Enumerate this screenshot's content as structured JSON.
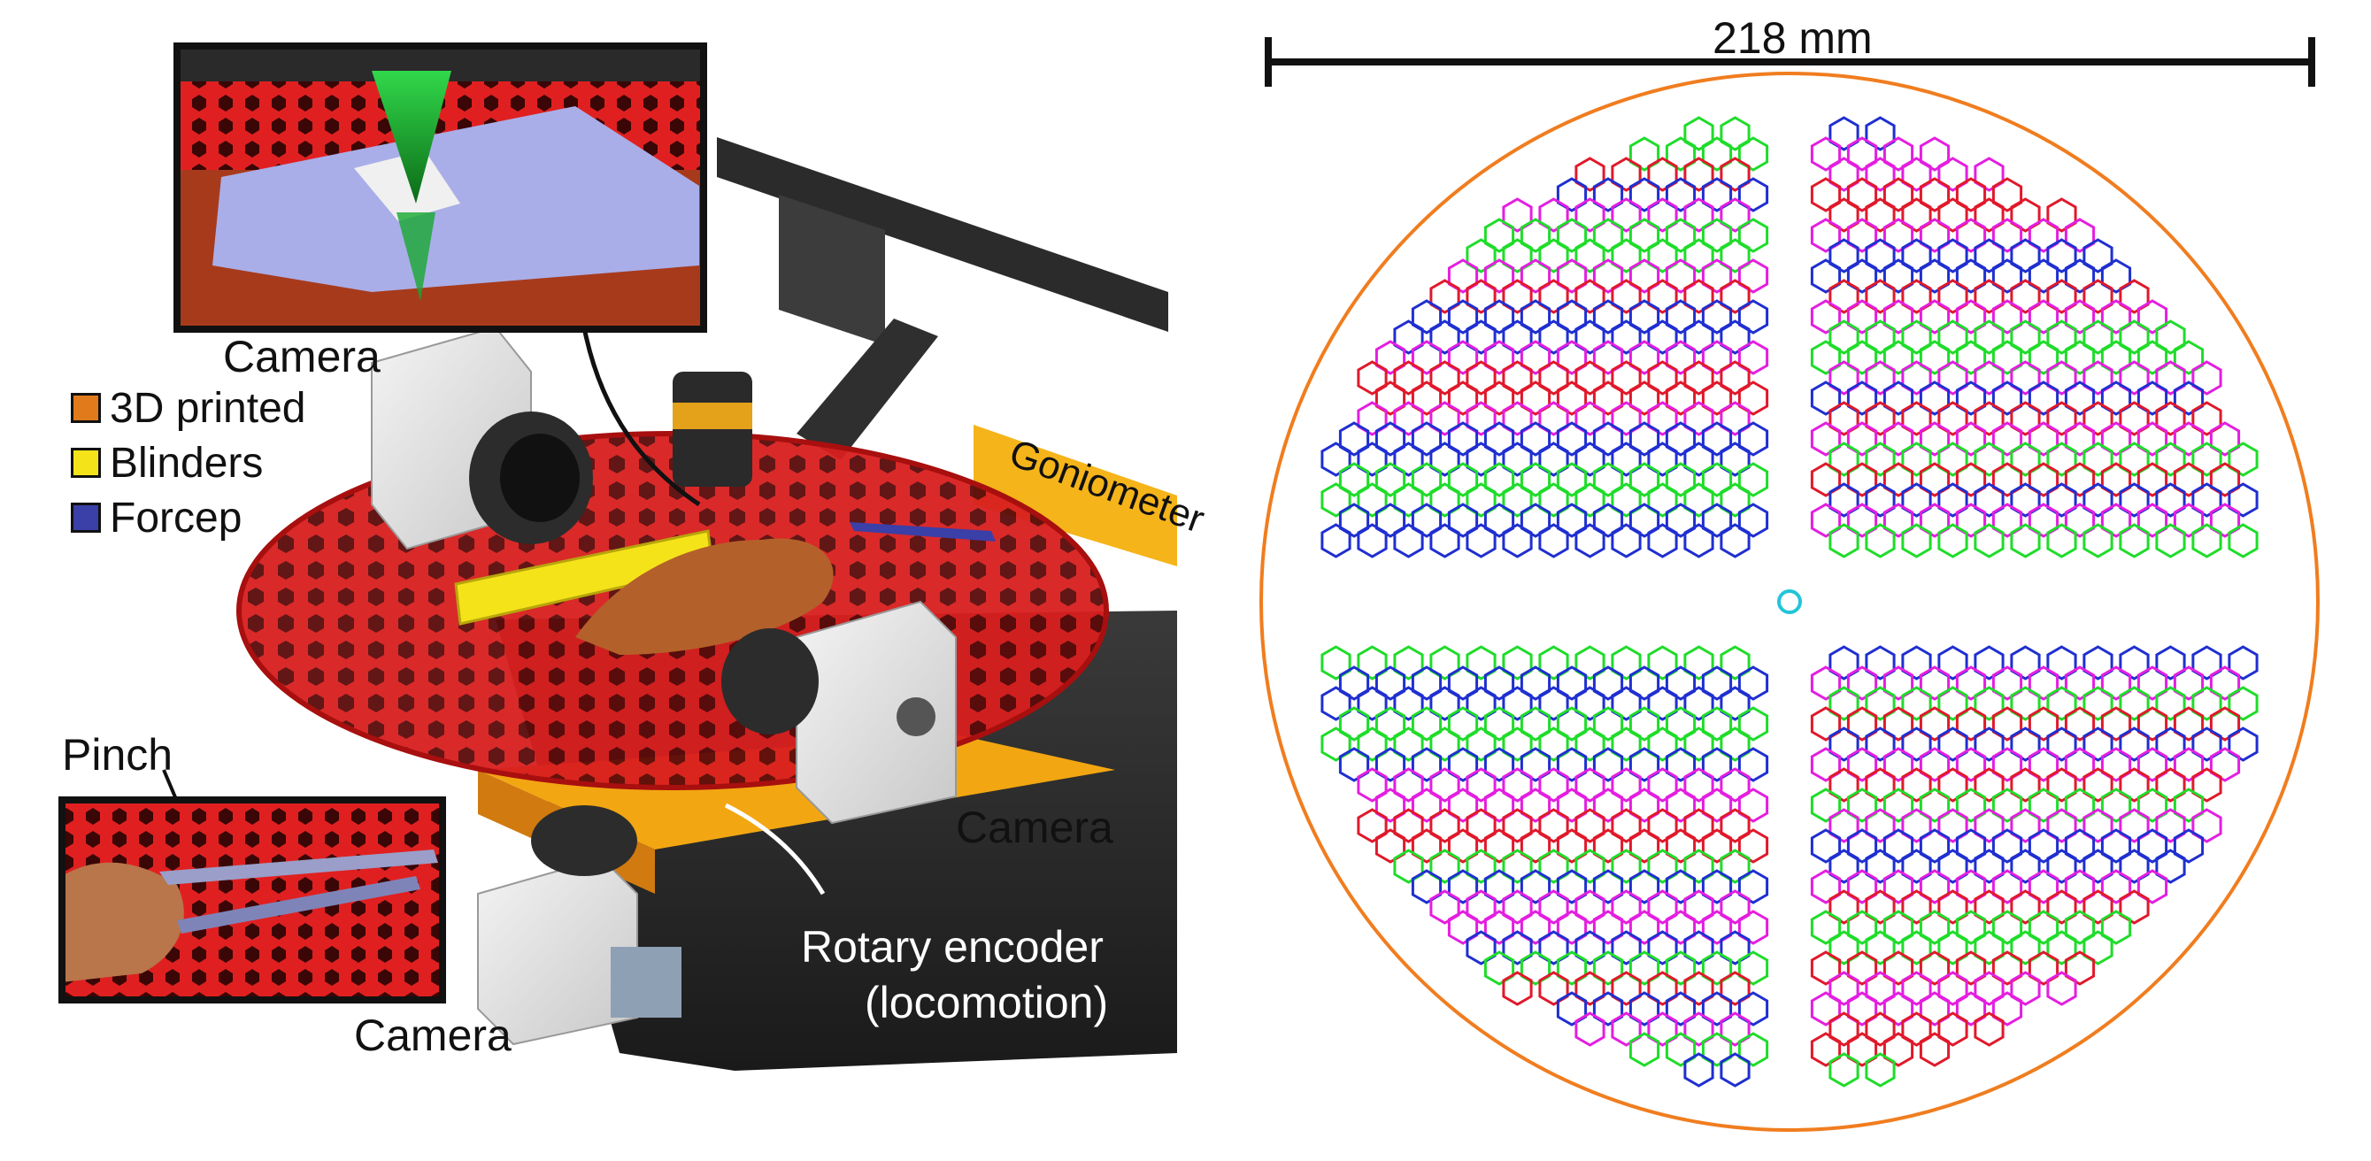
{
  "left_panel": {
    "labels": {
      "camera_top": "Camera",
      "camera_right": "Camera",
      "camera_bottom": "Camera",
      "goniometer": "Goniometer",
      "pinch": "Pinch",
      "rotary_line1": "Rotary encoder",
      "rotary_line2": "(locomotion)"
    },
    "legend": [
      {
        "label": "3D printed",
        "color": "#e07a1a"
      },
      {
        "label": "Blinders",
        "color": "#f5e31a"
      },
      {
        "label": "Forcep",
        "color": "#3b3fa8"
      }
    ]
  },
  "right_panel": {
    "scale_bar_label": "218 mm",
    "colors": {
      "circle": "#f07d1f",
      "center": "#22c5d8",
      "hexes": [
        "#1f2fd0",
        "#e0192b",
        "#1fdc2a",
        "#e41ee0"
      ]
    }
  }
}
